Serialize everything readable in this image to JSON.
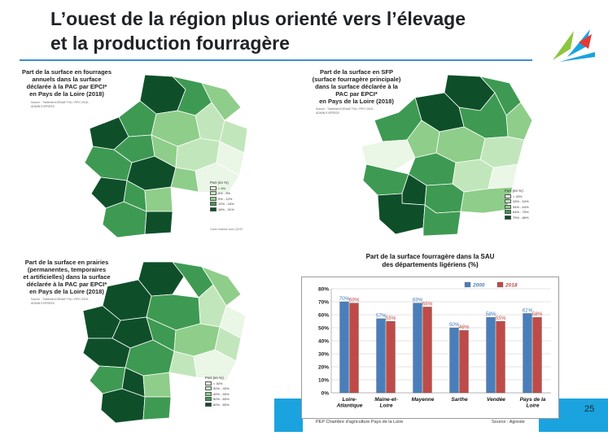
{
  "slide": {
    "title_line1": "L’ouest de la région plus orienté vers l’élevage",
    "title_line2": "et la production fourragère",
    "page_number": "25"
  },
  "maps": [
    {
      "caption": [
        "Part de la surface en fourrages",
        "annuels dans la surface",
        "déclarée à la PAC par EPCI*",
        "en Pays de la Loire (2018)"
      ],
      "source": "Source : Traitement DRAAF PdL / RPG 2018 - ADMIN EXPRESS",
      "legend_title": "Part (en %)",
      "legend": [
        "< 6%",
        "6% - 9%",
        "9% - 12%",
        "12% - 16%",
        "16% - 31%"
      ],
      "colors": [
        "#eaf6e6",
        "#c2e6bb",
        "#8fcd8a",
        "#3e9a52",
        "#0e4f2a"
      ]
    },
    {
      "caption": [
        "Part de la surface en SFP",
        "(surface fourragère principale)",
        "dans la surface déclarée à la",
        "PAC par EPCI*",
        "en Pays de la Loire (2018)"
      ],
      "source": "Source : Traitement DRAAF PdL / RPG 2018 - ADMIN EXPRESS",
      "legend_title": "Part (en %)",
      "legend": [
        "< 43%",
        "43% - 54%",
        "54% - 64%",
        "64% - 75%",
        "75% - 86%"
      ],
      "colors": [
        "#eaf6e6",
        "#c2e6bb",
        "#8fcd8a",
        "#3e9a52",
        "#0e4f2a"
      ]
    },
    {
      "caption": [
        "Part de la surface en prairies",
        "(permanentes, temporaires",
        "et artificielles) dans la surface",
        "déclarée à la PAC par EPCI*",
        "en Pays de la Loire (2018)"
      ],
      "source": "Source : Traitement DRAAF PdL / RPG 2018 - ADMIN EXPRESS",
      "legend_title": "Part (en %)",
      "legend": [
        "< 30%",
        "30% - 40%",
        "40% - 50%",
        "50% - 60%",
        "60% - 80%"
      ],
      "colors": [
        "#eaf6e6",
        "#c2e6bb",
        "#8fcd8a",
        "#3e9a52",
        "#0e4f2a"
      ]
    }
  ],
  "chart_data": {
    "type": "bar",
    "title_line1": "Part de la surface fourragère dans la SAU",
    "title_line2": "des départements ligériens (%)",
    "categories": [
      [
        "Loire-",
        "Atlantique"
      ],
      [
        "Maine-et-",
        "Loire"
      ],
      [
        "Mayenne"
      ],
      [
        "Sarthe"
      ],
      [
        "Vendée"
      ],
      [
        "Pays de la",
        "Loire"
      ]
    ],
    "series": [
      {
        "name": "2000",
        "color": "#4a7ebb",
        "values": [
          70,
          57,
          69,
          50,
          58,
          61
        ],
        "labels": [
          "70%",
          "57%",
          "69%",
          "50%",
          "58%",
          "61%"
        ]
      },
      {
        "name": "2018",
        "color": "#be4b48",
        "values": [
          69,
          55,
          66,
          48,
          55,
          58
        ],
        "labels": [
          "69%",
          "55%",
          "66%",
          "48%",
          "55%",
          "58%"
        ]
      }
    ],
    "yticks": [
      "0%",
      "10%",
      "20%",
      "30%",
      "40%",
      "50%",
      "60%",
      "70%",
      "80%"
    ],
    "ylim": [
      0,
      80
    ],
    "grid": true,
    "legend_position": "top-right"
  },
  "footer": {
    "left": "PEP Chambre d'agriculture  Pays de la Loire",
    "right": "Source : Agreste"
  },
  "credit": "Carte réalisée avec QGIS"
}
